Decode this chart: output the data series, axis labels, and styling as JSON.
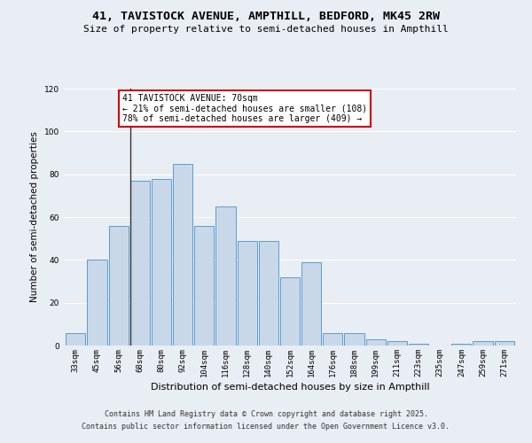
{
  "title_line1": "41, TAVISTOCK AVENUE, AMPTHILL, BEDFORD, MK45 2RW",
  "title_line2": "Size of property relative to semi-detached houses in Ampthill",
  "xlabel": "Distribution of semi-detached houses by size in Ampthill",
  "ylabel": "Number of semi-detached properties",
  "categories": [
    "33sqm",
    "45sqm",
    "56sqm",
    "68sqm",
    "80sqm",
    "92sqm",
    "104sqm",
    "116sqm",
    "128sqm",
    "140sqm",
    "152sqm",
    "164sqm",
    "176sqm",
    "188sqm",
    "199sqm",
    "211sqm",
    "223sqm",
    "235sqm",
    "247sqm",
    "259sqm",
    "271sqm"
  ],
  "values": [
    6,
    40,
    56,
    77,
    78,
    85,
    56,
    65,
    49,
    49,
    32,
    39,
    6,
    6,
    3,
    2,
    1,
    0,
    1,
    2,
    2
  ],
  "bar_color": "#c8d8e8",
  "bar_edge_color": "#5b9bd5",
  "annotation_text": "41 TAVISTOCK AVENUE: 70sqm\n← 21% of semi-detached houses are smaller (108)\n78% of semi-detached houses are larger (409) →",
  "annotation_box_color": "#ffffff",
  "annotation_box_edge": "#cc0000",
  "vline_x": 3,
  "ylim": [
    0,
    120
  ],
  "yticks": [
    0,
    20,
    40,
    60,
    80,
    100,
    120
  ],
  "footer_line1": "Contains HM Land Registry data © Crown copyright and database right 2025.",
  "footer_line2": "Contains public sector information licensed under the Open Government Licence v3.0.",
  "background_color": "#e8eef4",
  "plot_bg_color": "#e8eef4",
  "grid_color": "#ffffff",
  "title_fontsize": 9.5,
  "subtitle_fontsize": 8,
  "ylabel_fontsize": 7.5,
  "xlabel_fontsize": 8,
  "tick_fontsize": 6.5,
  "annot_fontsize": 7,
  "footer_fontsize": 6
}
